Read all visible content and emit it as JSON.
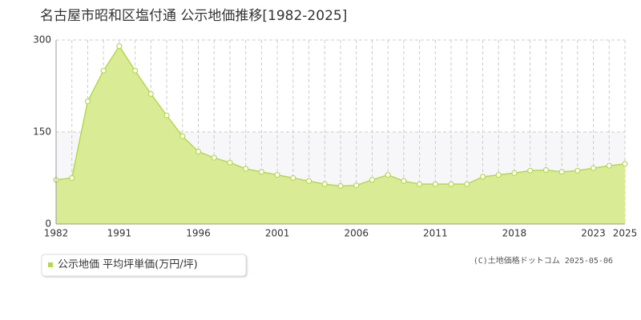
{
  "chart_data": {
    "type": "area",
    "title": "名古屋市昭和区塩付通 公示地価推移[1982-2025]",
    "categories": [
      "1982",
      null,
      null,
      null,
      "1991",
      null,
      null,
      null,
      null,
      "1996",
      null,
      null,
      null,
      null,
      "2001",
      null,
      null,
      null,
      null,
      "2006",
      null,
      null,
      null,
      null,
      "2011",
      null,
      null,
      null,
      null,
      "2018",
      null,
      null,
      null,
      null,
      "2023",
      null,
      "2025"
    ],
    "series": [
      {
        "name": "公示地価 平均坪単価(万円/坪)",
        "color": "#b5d94a",
        "values": [
          72,
          75,
          200,
          250,
          290,
          250,
          212,
          177,
          143,
          118,
          108,
          100,
          90,
          85,
          80,
          75,
          70,
          65,
          62,
          63,
          72,
          80,
          70,
          65,
          65,
          65,
          65,
          77,
          80,
          83,
          87,
          88,
          85,
          87,
          91,
          95,
          98
        ]
      }
    ],
    "ylim": [
      0,
      300
    ],
    "yticks": [
      0,
      150,
      300
    ],
    "grid": true,
    "credit": "(C)土地価格ドットコム 2025-05-06"
  }
}
